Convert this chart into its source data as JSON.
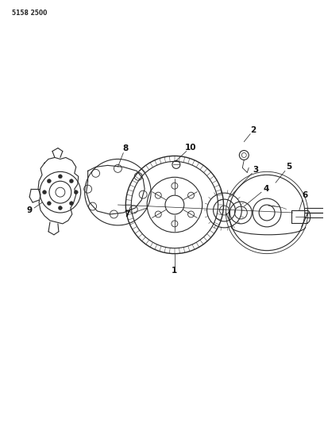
{
  "title_code": "5158 2500",
  "bg_color": "#ffffff",
  "line_color": "#2a2a2a",
  "label_color": "#111111",
  "fig_width": 4.08,
  "fig_height": 5.33
}
